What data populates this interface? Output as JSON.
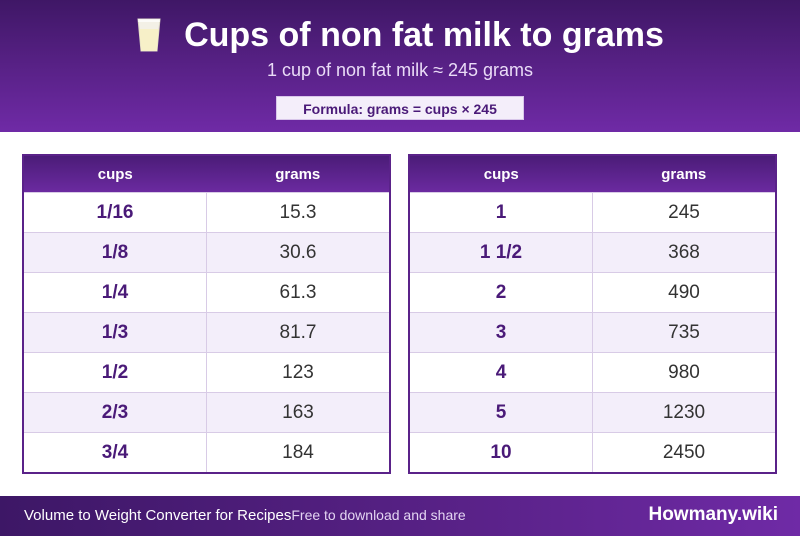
{
  "header": {
    "title": "Cups of non fat milk to grams",
    "subtitle": "1 cup of non fat milk ≈ 245 grams",
    "formula": "Formula: grams = cups × 245",
    "icon": "milk-glass-icon"
  },
  "tables": {
    "left": {
      "col_cups": "cups",
      "col_grams": "grams",
      "rows": [
        {
          "cups": "1/16",
          "grams": "15.3"
        },
        {
          "cups": "1/8",
          "grams": "30.6"
        },
        {
          "cups": "1/4",
          "grams": "61.3"
        },
        {
          "cups": "1/3",
          "grams": "81.7"
        },
        {
          "cups": "1/2",
          "grams": "123"
        },
        {
          "cups": "2/3",
          "grams": "163"
        },
        {
          "cups": "3/4",
          "grams": "184"
        }
      ]
    },
    "right": {
      "col_cups": "cups",
      "col_grams": "grams",
      "rows": [
        {
          "cups": "1",
          "grams": "245"
        },
        {
          "cups": "1 1/2",
          "grams": "368"
        },
        {
          "cups": "2",
          "grams": "490"
        },
        {
          "cups": "3",
          "grams": "735"
        },
        {
          "cups": "4",
          "grams": "980"
        },
        {
          "cups": "5",
          "grams": "1230"
        },
        {
          "cups": "10",
          "grams": "2450"
        }
      ]
    }
  },
  "footer": {
    "left": "Volume to Weight Converter for Recipes",
    "note": "Free to download and share",
    "brand": "Howmany.wiki"
  },
  "colors": {
    "primary": "#5a2289",
    "accent_text": "#4a1a78",
    "row_alt": "#f3eefa"
  }
}
